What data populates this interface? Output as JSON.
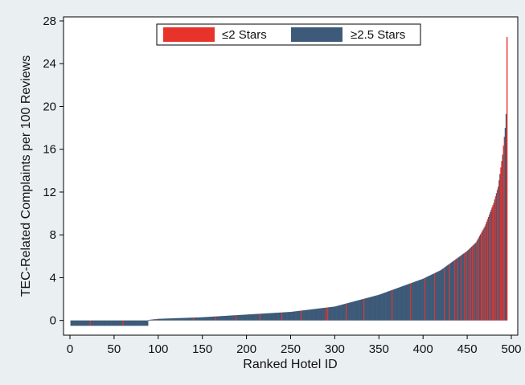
{
  "chart_data": {
    "type": "bar",
    "title": "",
    "xlabel": "Ranked Hotel ID",
    "ylabel": "TEC-Related Complaints per 100 Reviews",
    "xlim": [
      0,
      500
    ],
    "ylim": [
      -1,
      28
    ],
    "xticks": [
      "0",
      "50",
      "100",
      "150",
      "200",
      "250",
      "300",
      "350",
      "400",
      "450",
      "500"
    ],
    "yticks": [
      "0",
      "4",
      "8",
      "12",
      "16",
      "20",
      "24",
      "28"
    ],
    "grid": false,
    "legend_position": "top-center",
    "n_hotels": 495,
    "colors": {
      "low_star": "#e8332a",
      "high_star": "#3d5a78"
    },
    "series": [
      {
        "name": "≤2 Stars",
        "color": "#e8332a"
      },
      {
        "name": "≥2.5 Stars",
        "color": "#3d5a78"
      }
    ],
    "value_curve": [
      [
        1,
        -0.5
      ],
      [
        88,
        -0.5
      ],
      [
        89,
        0.05
      ],
      [
        100,
        0.15
      ],
      [
        150,
        0.3
      ],
      [
        200,
        0.55
      ],
      [
        250,
        0.8
      ],
      [
        300,
        1.3
      ],
      [
        350,
        2.4
      ],
      [
        380,
        3.3
      ],
      [
        400,
        3.9
      ],
      [
        420,
        4.7
      ],
      [
        440,
        5.9
      ],
      [
        450,
        6.5
      ],
      [
        460,
        7.3
      ],
      [
        470,
        8.8
      ],
      [
        480,
        11.0
      ],
      [
        485,
        12.5
      ],
      [
        490,
        15.5
      ],
      [
        493,
        18.0
      ],
      [
        494,
        19.3
      ],
      [
        495,
        26.5
      ]
    ],
    "low_star_hotels": [
      23,
      60,
      98,
      140,
      165,
      188,
      215,
      240,
      262,
      290,
      292,
      313,
      333,
      365,
      386,
      402,
      413,
      424,
      430,
      436,
      439,
      443,
      447,
      449,
      452,
      454,
      456,
      458,
      461,
      463,
      466,
      467,
      469,
      471,
      473,
      475,
      477,
      479,
      480,
      482,
      484,
      486,
      488,
      489,
      491,
      492,
      495
    ]
  }
}
